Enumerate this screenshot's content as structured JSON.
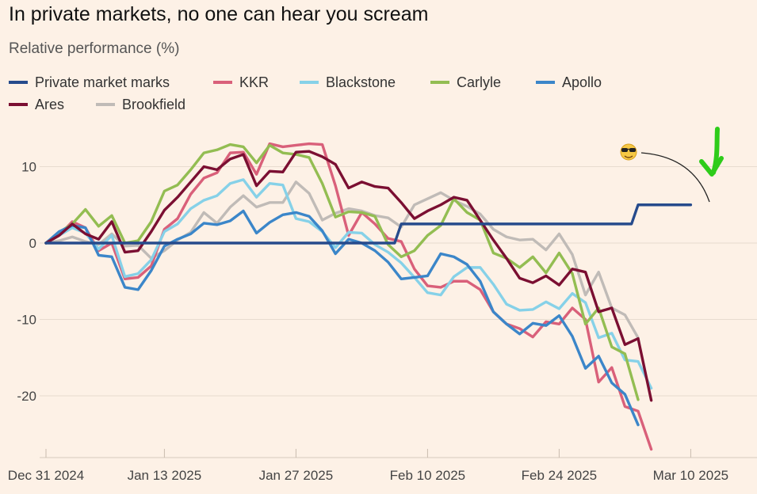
{
  "chart_data": {
    "type": "line",
    "title": "In private markets, no one can hear you scream",
    "subtitle": "Relative performance (%)",
    "xlabel": "",
    "ylabel": "",
    "x_ticks": [
      "Dec 31 2024",
      "Jan 13 2025",
      "Jan 27 2025",
      "Feb 10 2025",
      "Feb 24 2025",
      "Mar 10 2025"
    ],
    "x_tick_index": [
      0,
      9,
      19,
      29,
      39,
      49
    ],
    "y_ticks": [
      10,
      0,
      -10,
      -20
    ],
    "ylim": [
      -27.5,
      14
    ],
    "grid": true,
    "legend_position": "top",
    "annotation_icon": "sunglasses-emoji-icon",
    "annotation_arrow_color": "#2ecc1a",
    "series": [
      {
        "name": "Private market marks",
        "color": "#264b8c",
        "values": [
          0,
          0,
          0,
          0,
          0,
          0,
          0,
          0,
          0,
          0,
          0,
          0,
          0,
          0,
          0,
          0,
          0,
          0,
          0,
          0,
          0,
          0,
          0,
          0,
          0,
          0,
          0,
          2.5,
          2.5,
          2.5,
          2.5,
          2.5,
          2.5,
          2.5,
          2.5,
          2.5,
          2.5,
          2.5,
          2.5,
          2.5,
          2.5,
          2.5,
          2.5,
          2.5,
          2.5,
          5,
          5,
          5,
          5,
          5
        ]
      },
      {
        "name": "KKR",
        "color": "#d9607a",
        "values": [
          0,
          1,
          2.8,
          2,
          -1,
          0,
          -4.7,
          -4.5,
          -3,
          1.8,
          3.2,
          6.4,
          8.5,
          9.2,
          11.8,
          11.9,
          9,
          13,
          12.6,
          12.8,
          13,
          12.9,
          7.5,
          1,
          4,
          2.5,
          0.6,
          0.2,
          -3.4,
          -5.6,
          -5.8,
          -5,
          -5,
          -6.1,
          -9,
          -10.6,
          -11.2,
          -12.3,
          -10.3,
          -10.6,
          -8.5,
          -10,
          -18.2,
          -16.3,
          -21.4,
          -22,
          -27
        ]
      },
      {
        "name": "Blackstone",
        "color": "#86d1e8",
        "values": [
          0,
          1,
          2,
          1.3,
          -0.8,
          1,
          -4.4,
          -4,
          -2.2,
          1.5,
          2.5,
          4.5,
          5.6,
          6.2,
          7.8,
          8.3,
          6,
          7.8,
          7.6,
          3.2,
          2.8,
          1.5,
          -0.6,
          1.4,
          1.3,
          -0.2,
          -1.2,
          -2.6,
          -4.5,
          -6.5,
          -6.8,
          -4.4,
          -3.2,
          -3.2,
          -5.4,
          -8,
          -8.8,
          -8.7,
          -7.7,
          -8.6,
          -6.6,
          -7.8,
          -12.4,
          -11.8,
          -15.3,
          -15.5,
          -19
        ]
      },
      {
        "name": "Carlyle",
        "color": "#93bd52",
        "values": [
          0,
          1.4,
          2.5,
          4.4,
          2.2,
          3.6,
          0,
          0.3,
          2.8,
          6.8,
          7.6,
          9.6,
          11.8,
          12.2,
          12.9,
          12.6,
          10.5,
          12.8,
          11.8,
          11.6,
          11.2,
          7.8,
          3.4,
          4.1,
          4,
          3.5,
          -0.2,
          -1.8,
          -1,
          1,
          2.3,
          5.8,
          4,
          3,
          -1.3,
          -2,
          -3.2,
          -1.8,
          -3.9,
          -1.3,
          -4,
          -10.6,
          -8.5,
          -13.6,
          -14.5,
          -20.5
        ]
      },
      {
        "name": "Apollo",
        "color": "#3b86c9",
        "values": [
          0,
          1.5,
          2.3,
          2,
          -1.6,
          -1.8,
          -5.8,
          -6.1,
          -3.6,
          -0.4,
          0.5,
          1.2,
          2.6,
          2.4,
          2.9,
          4.2,
          1.3,
          2.7,
          3.7,
          4,
          3.5,
          1.6,
          -1.4,
          0.5,
          0,
          -1,
          -2.5,
          -4.7,
          -4.5,
          -4.3,
          -1.4,
          -1.8,
          -2.8,
          -5,
          -9,
          -10.6,
          -11.9,
          -10.5,
          -10.8,
          -9.5,
          -12.2,
          -16.4,
          -14.8,
          -18.3,
          -19.8,
          -23.8
        ]
      },
      {
        "name": "Ares",
        "color": "#7b0f32",
        "values": [
          0,
          1,
          2.5,
          1.2,
          0.5,
          2.8,
          -1.2,
          -1,
          1.5,
          4.3,
          6,
          8,
          10,
          9.6,
          11,
          11.6,
          7.5,
          9.4,
          9.3,
          11.9,
          12,
          11.3,
          10.3,
          7.2,
          8,
          7.4,
          7.2,
          5.3,
          3.2,
          4.2,
          5,
          6,
          5.6,
          3,
          0.4,
          -2,
          -4.6,
          -5.2,
          -4.3,
          -5.5,
          -3.4,
          -3.8,
          -9,
          -8.5,
          -13.3,
          -12.5,
          -20.6
        ]
      },
      {
        "name": "Brookfield",
        "color": "#c0bbb7",
        "values": [
          0,
          0.3,
          0.8,
          0.2,
          -0.2,
          1.2,
          -0.4,
          -0.3,
          -2,
          -1,
          0.4,
          1.4,
          4,
          2.6,
          4.7,
          6.2,
          4.7,
          5.3,
          5.3,
          8,
          6.5,
          3,
          3.9,
          4.5,
          4.2,
          3.6,
          3.3,
          2.1,
          5,
          5.8,
          6.6,
          5.6,
          4.8,
          3.8,
          1.8,
          0.8,
          0.4,
          0.5,
          -0.9,
          1.2,
          -1.5,
          -6.8,
          -3.8,
          -8.5,
          -9.4,
          -12.4
        ]
      }
    ]
  }
}
